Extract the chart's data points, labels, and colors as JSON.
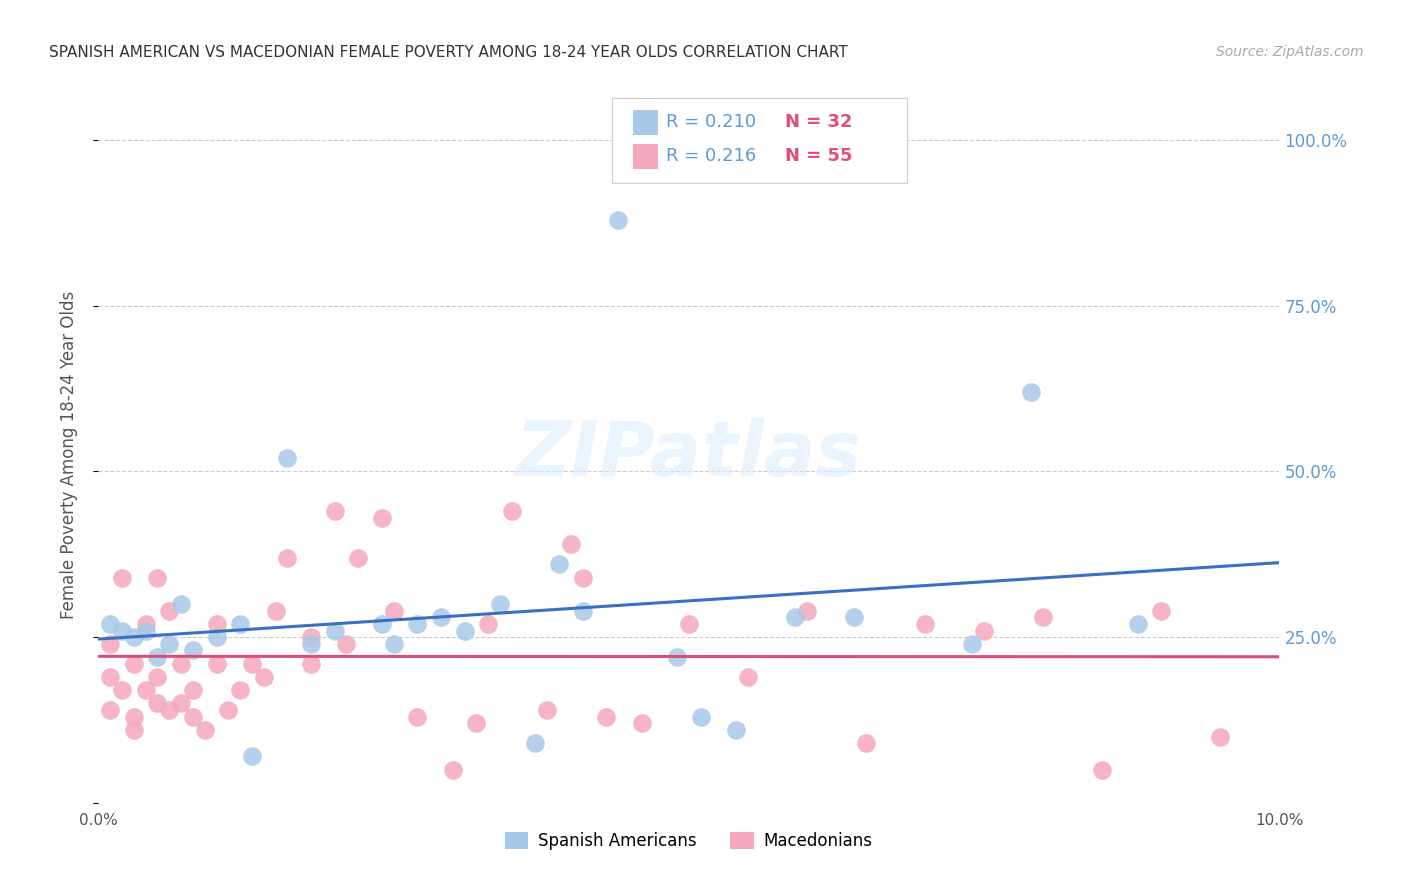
{
  "title": "SPANISH AMERICAN VS MACEDONIAN FEMALE POVERTY AMONG 18-24 YEAR OLDS CORRELATION CHART",
  "source": "Source: ZipAtlas.com",
  "ylabel": "Female Poverty Among 18-24 Year Olds",
  "xlim": [
    0.0,
    0.1
  ],
  "ylim": [
    0.0,
    1.05
  ],
  "yticks": [
    0.0,
    0.25,
    0.5,
    0.75,
    1.0
  ],
  "right_ytick_labels": [
    "",
    "25.0%",
    "50.0%",
    "75.0%",
    "100.0%"
  ],
  "xticks": [
    0.0,
    0.02,
    0.04,
    0.06,
    0.08,
    0.1
  ],
  "xtick_labels": [
    "0.0%",
    "",
    "",
    "",
    "",
    "10.0%"
  ],
  "blue_R": 0.21,
  "blue_N": 32,
  "pink_R": 0.216,
  "pink_N": 55,
  "blue_color": "#a8c8e8",
  "pink_color": "#f4a8bc",
  "blue_line_color": "#3a6fc4",
  "pink_line_color": "#d94f7a",
  "watermark_text": "ZIPatlas",
  "blue_label": "Spanish Americans",
  "pink_label": "Macedonians",
  "blue_points_x": [
    0.001,
    0.002,
    0.003,
    0.004,
    0.005,
    0.006,
    0.007,
    0.008,
    0.01,
    0.012,
    0.013,
    0.016,
    0.018,
    0.02,
    0.024,
    0.025,
    0.027,
    0.029,
    0.031,
    0.034,
    0.037,
    0.039,
    0.041,
    0.044,
    0.049,
    0.051,
    0.054,
    0.059,
    0.064,
    0.074,
    0.079,
    0.088
  ],
  "blue_points_y": [
    0.27,
    0.26,
    0.25,
    0.26,
    0.22,
    0.24,
    0.3,
    0.23,
    0.25,
    0.27,
    0.07,
    0.52,
    0.24,
    0.26,
    0.27,
    0.24,
    0.27,
    0.28,
    0.26,
    0.3,
    0.09,
    0.36,
    0.29,
    0.88,
    0.22,
    0.13,
    0.11,
    0.28,
    0.28,
    0.24,
    0.62,
    0.27
  ],
  "pink_points_x": [
    0.001,
    0.001,
    0.001,
    0.002,
    0.002,
    0.003,
    0.003,
    0.003,
    0.004,
    0.004,
    0.005,
    0.005,
    0.005,
    0.006,
    0.006,
    0.007,
    0.007,
    0.008,
    0.008,
    0.009,
    0.01,
    0.01,
    0.011,
    0.012,
    0.013,
    0.014,
    0.015,
    0.016,
    0.018,
    0.018,
    0.02,
    0.021,
    0.022,
    0.024,
    0.025,
    0.027,
    0.03,
    0.032,
    0.033,
    0.035,
    0.038,
    0.04,
    0.041,
    0.043,
    0.046,
    0.05,
    0.055,
    0.06,
    0.065,
    0.07,
    0.075,
    0.08,
    0.085,
    0.09,
    0.095
  ],
  "pink_points_y": [
    0.24,
    0.19,
    0.14,
    0.17,
    0.34,
    0.11,
    0.13,
    0.21,
    0.27,
    0.17,
    0.15,
    0.19,
    0.34,
    0.14,
    0.29,
    0.15,
    0.21,
    0.17,
    0.13,
    0.11,
    0.21,
    0.27,
    0.14,
    0.17,
    0.21,
    0.19,
    0.29,
    0.37,
    0.21,
    0.25,
    0.44,
    0.24,
    0.37,
    0.43,
    0.29,
    0.13,
    0.05,
    0.12,
    0.27,
    0.44,
    0.14,
    0.39,
    0.34,
    0.13,
    0.12,
    0.27,
    0.19,
    0.29,
    0.09,
    0.27,
    0.26,
    0.28,
    0.05,
    0.29,
    0.1
  ]
}
